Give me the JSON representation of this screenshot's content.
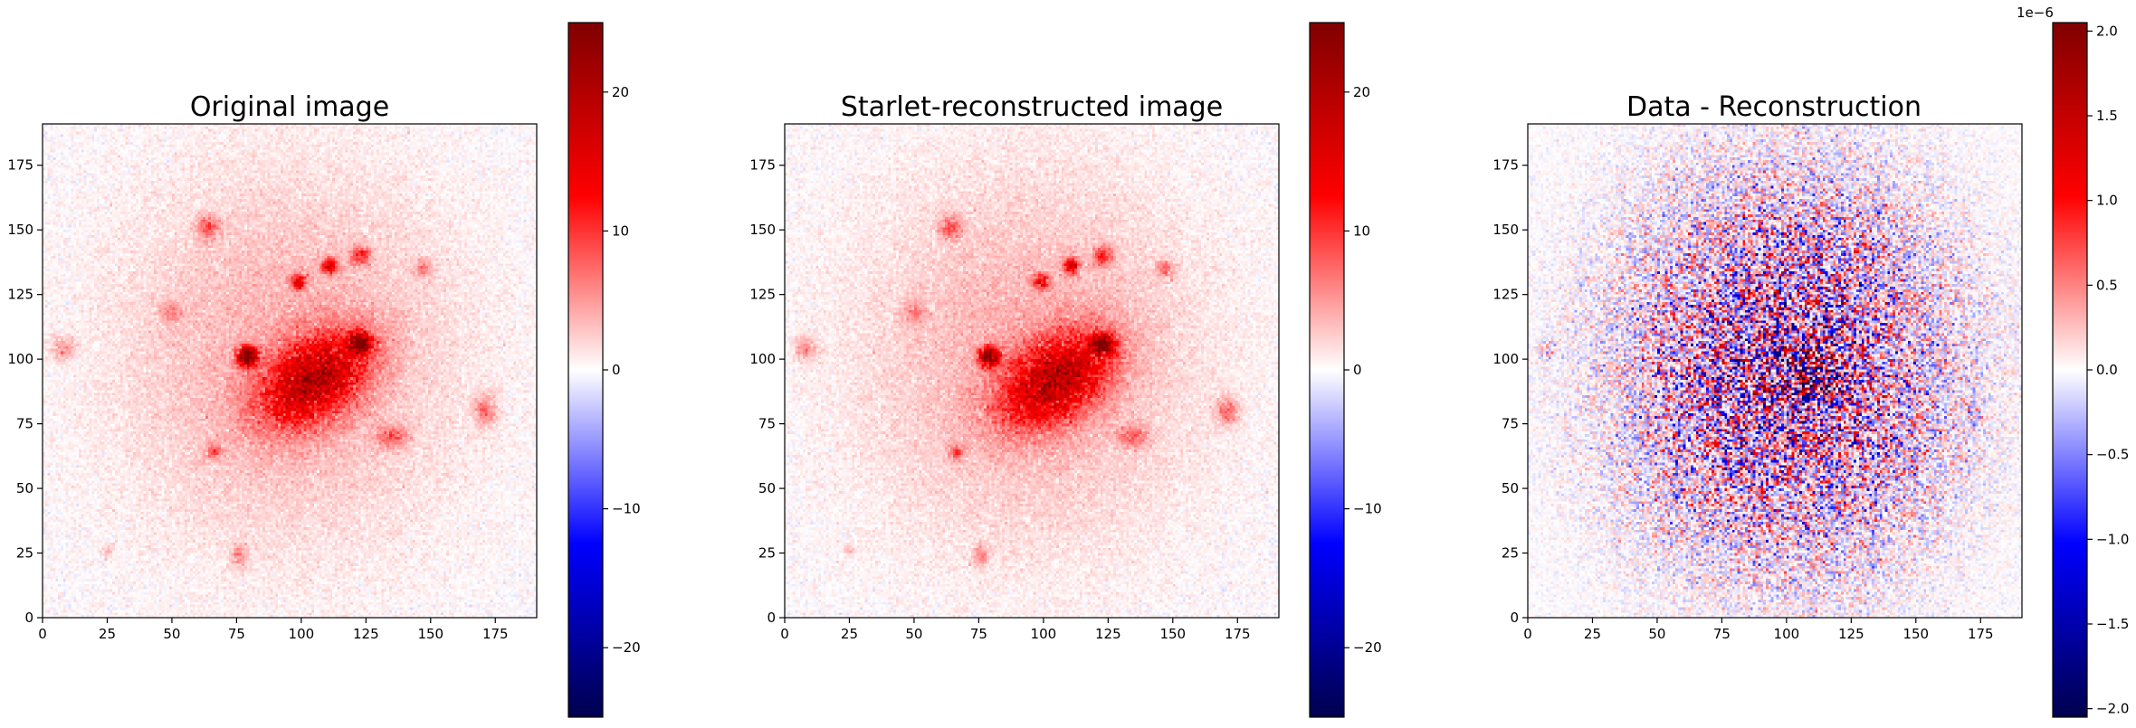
{
  "chart_data": [
    {
      "type": "heatmap",
      "title": "Original image",
      "xlabel": "",
      "ylabel": "",
      "xlim": [
        0,
        191
      ],
      "ylim": [
        0,
        191
      ],
      "xticks": [
        0,
        25,
        50,
        75,
        100,
        125,
        150,
        175
      ],
      "yticks": [
        0,
        25,
        50,
        75,
        100,
        125,
        150,
        175
      ],
      "colormap": "seismic",
      "colorbar": {
        "range": [
          -25,
          25
        ],
        "ticks": [
          -20,
          -10,
          0,
          10,
          20
        ],
        "tick_labels": [
          "−20",
          "−10",
          "0",
          "10",
          "20"
        ],
        "offset_text": ""
      },
      "features": [
        {
          "kind": "diffuse-halo",
          "center": [
            95,
            100
          ],
          "sigma": [
            45,
            50
          ],
          "value": 4
        },
        {
          "kind": "bright-bar",
          "center": [
            105,
            92
          ],
          "sigma": [
            16,
            10
          ],
          "angle_deg": 35,
          "value": 16
        },
        {
          "kind": "source",
          "center": [
            79,
            101
          ],
          "sigma": [
            2.5,
            2.5
          ],
          "value": 24
        },
        {
          "kind": "source",
          "center": [
            123,
            106
          ],
          "sigma": [
            3,
            2.5
          ],
          "value": 20
        },
        {
          "kind": "source",
          "center": [
            111,
            136
          ],
          "sigma": [
            2,
            2
          ],
          "value": 15
        },
        {
          "kind": "source",
          "center": [
            99,
            130
          ],
          "sigma": [
            2,
            2
          ],
          "value": 13
        },
        {
          "kind": "source",
          "center": [
            123,
            140
          ],
          "sigma": [
            2.5,
            2.5
          ],
          "value": 9
        },
        {
          "kind": "source",
          "center": [
            64,
            151
          ],
          "sigma": [
            3,
            3
          ],
          "value": 7
        },
        {
          "kind": "source",
          "center": [
            147,
            135
          ],
          "sigma": [
            2.5,
            2.5
          ],
          "value": 5
        },
        {
          "kind": "source",
          "center": [
            8,
            104
          ],
          "sigma": [
            3,
            3
          ],
          "value": 5
        },
        {
          "kind": "source",
          "center": [
            171,
            80
          ],
          "sigma": [
            3,
            4
          ],
          "value": 6
        },
        {
          "kind": "source",
          "center": [
            135,
            70
          ],
          "sigma": [
            4,
            3
          ],
          "value": 6
        },
        {
          "kind": "source",
          "center": [
            66,
            64
          ],
          "sigma": [
            2,
            2
          ],
          "value": 6
        },
        {
          "kind": "source",
          "center": [
            76,
            24
          ],
          "sigma": [
            2,
            3
          ],
          "value": 5
        },
        {
          "kind": "source",
          "center": [
            50,
            118
          ],
          "sigma": [
            3,
            3
          ],
          "value": 4
        },
        {
          "kind": "source",
          "center": [
            25,
            26
          ],
          "sigma": [
            1.5,
            1.5
          ],
          "value": 3
        }
      ]
    },
    {
      "type": "heatmap",
      "title": "Starlet-reconstructed image",
      "xlabel": "",
      "ylabel": "",
      "xlim": [
        0,
        191
      ],
      "ylim": [
        0,
        191
      ],
      "xticks": [
        0,
        25,
        50,
        75,
        100,
        125,
        150,
        175
      ],
      "yticks": [
        0,
        25,
        50,
        75,
        100,
        125,
        150,
        175
      ],
      "colormap": "seismic",
      "colorbar": {
        "range": [
          -25,
          25
        ],
        "ticks": [
          -20,
          -10,
          0,
          10,
          20
        ],
        "tick_labels": [
          "−20",
          "−10",
          "0",
          "10",
          "20"
        ],
        "offset_text": ""
      },
      "features": [
        {
          "kind": "diffuse-halo",
          "center": [
            95,
            100
          ],
          "sigma": [
            45,
            50
          ],
          "value": 4
        },
        {
          "kind": "bright-bar",
          "center": [
            105,
            92
          ],
          "sigma": [
            16,
            10
          ],
          "angle_deg": 35,
          "value": 16
        },
        {
          "kind": "source",
          "center": [
            79,
            101
          ],
          "sigma": [
            2.5,
            2.5
          ],
          "value": 24
        },
        {
          "kind": "source",
          "center": [
            123,
            106
          ],
          "sigma": [
            3,
            2.5
          ],
          "value": 20
        },
        {
          "kind": "source",
          "center": [
            111,
            136
          ],
          "sigma": [
            2,
            2
          ],
          "value": 15
        },
        {
          "kind": "source",
          "center": [
            99,
            130
          ],
          "sigma": [
            2,
            2
          ],
          "value": 13
        },
        {
          "kind": "source",
          "center": [
            123,
            140
          ],
          "sigma": [
            2.5,
            2.5
          ],
          "value": 9
        },
        {
          "kind": "source",
          "center": [
            64,
            151
          ],
          "sigma": [
            3,
            3
          ],
          "value": 7
        },
        {
          "kind": "source",
          "center": [
            147,
            135
          ],
          "sigma": [
            2.5,
            2.5
          ],
          "value": 5
        },
        {
          "kind": "source",
          "center": [
            8,
            104
          ],
          "sigma": [
            3,
            3
          ],
          "value": 5
        },
        {
          "kind": "source",
          "center": [
            171,
            80
          ],
          "sigma": [
            3,
            4
          ],
          "value": 6
        },
        {
          "kind": "source",
          "center": [
            135,
            70
          ],
          "sigma": [
            4,
            3
          ],
          "value": 6
        },
        {
          "kind": "source",
          "center": [
            66,
            64
          ],
          "sigma": [
            2,
            2
          ],
          "value": 6
        },
        {
          "kind": "source",
          "center": [
            76,
            24
          ],
          "sigma": [
            2,
            3
          ],
          "value": 5
        },
        {
          "kind": "source",
          "center": [
            50,
            118
          ],
          "sigma": [
            3,
            3
          ],
          "value": 4
        },
        {
          "kind": "source",
          "center": [
            25,
            26
          ],
          "sigma": [
            1.5,
            1.5
          ],
          "value": 3
        }
      ]
    },
    {
      "type": "heatmap",
      "title": "Data - Reconstruction",
      "xlabel": "",
      "ylabel": "",
      "xlim": [
        0,
        191
      ],
      "ylim": [
        0,
        191
      ],
      "xticks": [
        0,
        25,
        50,
        75,
        100,
        125,
        150,
        175
      ],
      "yticks": [
        0,
        25,
        50,
        75,
        100,
        125,
        150,
        175
      ],
      "colormap": "seismic",
      "colorbar": {
        "range": [
          -2.05e-06,
          2.05e-06
        ],
        "ticks": [
          -2.0,
          -1.5,
          -1.0,
          -0.5,
          0.0,
          0.5,
          1.0,
          1.5,
          2.0
        ],
        "tick_labels": [
          "−2.0",
          "−1.5",
          "−1.0",
          "−0.5",
          "0.0",
          "0.5",
          "1.0",
          "1.5",
          "2.0"
        ],
        "offset_text": "1e−6"
      },
      "features": [
        {
          "kind": "noise-envelope",
          "center": [
            100,
            95
          ],
          "sigma": [
            42,
            50
          ],
          "amplitude": 1.2e-06
        },
        {
          "kind": "noise-envelope",
          "center": [
            110,
            95
          ],
          "sigma": [
            14,
            16
          ],
          "amplitude": 2e-06
        },
        {
          "kind": "noise-envelope",
          "center": [
            172,
            80
          ],
          "sigma": [
            3,
            3
          ],
          "amplitude": 6e-07
        },
        {
          "kind": "noise-envelope",
          "center": [
            8,
            104
          ],
          "sigma": [
            3,
            3
          ],
          "amplitude": 5e-07
        }
      ]
    }
  ]
}
